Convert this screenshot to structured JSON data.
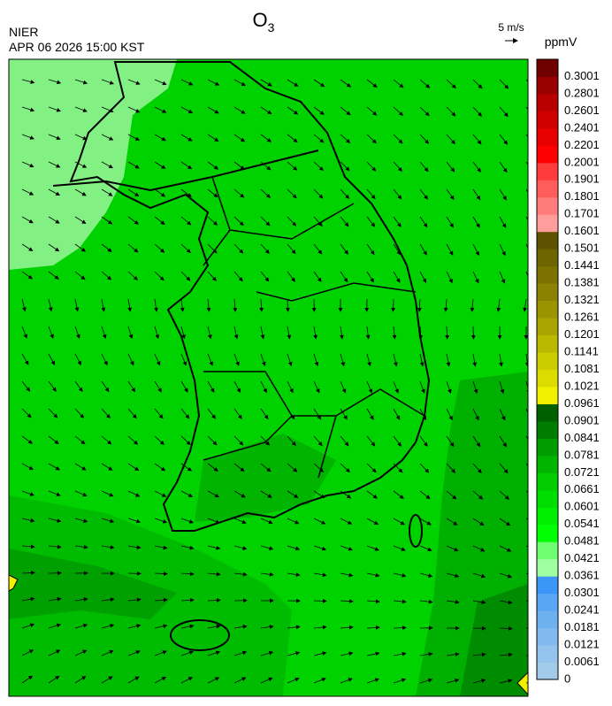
{
  "header": {
    "title": "O",
    "title_subscript": "3",
    "agency": "NIER",
    "timestamp": "APR 06 2026 15:00 KST"
  },
  "wind_legend": {
    "label": "5 m/s"
  },
  "colorbar": {
    "unit": "ppmV",
    "levels": [
      0,
      0.0061,
      0.0121,
      0.0181,
      0.0241,
      0.0301,
      0.0361,
      0.0421,
      0.0481,
      0.0541,
      0.0601,
      0.0661,
      0.0721,
      0.0781,
      0.0841,
      0.0901,
      0.0961,
      0.1021,
      0.1081,
      0.1141,
      0.1201,
      0.1261,
      0.1321,
      0.1381,
      0.1441,
      0.1501,
      0.1601,
      0.1701,
      0.1801,
      0.1901,
      0.2001,
      0.2201,
      0.2401,
      0.2601,
      0.2801,
      0.3001
    ],
    "colors": [
      "#a2cbe9",
      "#94c3ed",
      "#82baef",
      "#6eb1f1",
      "#59a6f4",
      "#3b96f8",
      "#a0ffa0",
      "#70ff70",
      "#00ff00",
      "#00ee00",
      "#00dd00",
      "#00cc00",
      "#00b400",
      "#009c00",
      "#007c00",
      "#006000",
      "#f0f000",
      "#dcdc00",
      "#cccc00",
      "#bcb800",
      "#aaa400",
      "#9a9400",
      "#8a8200",
      "#7c7200",
      "#6e6400",
      "#5e5200",
      "#ff9c9c",
      "#ff7c7c",
      "#ff5c5c",
      "#ff3c3c",
      "#ff0000",
      "#e80000",
      "#d00000",
      "#b80000",
      "#980000",
      "#700000"
    ]
  }
}
